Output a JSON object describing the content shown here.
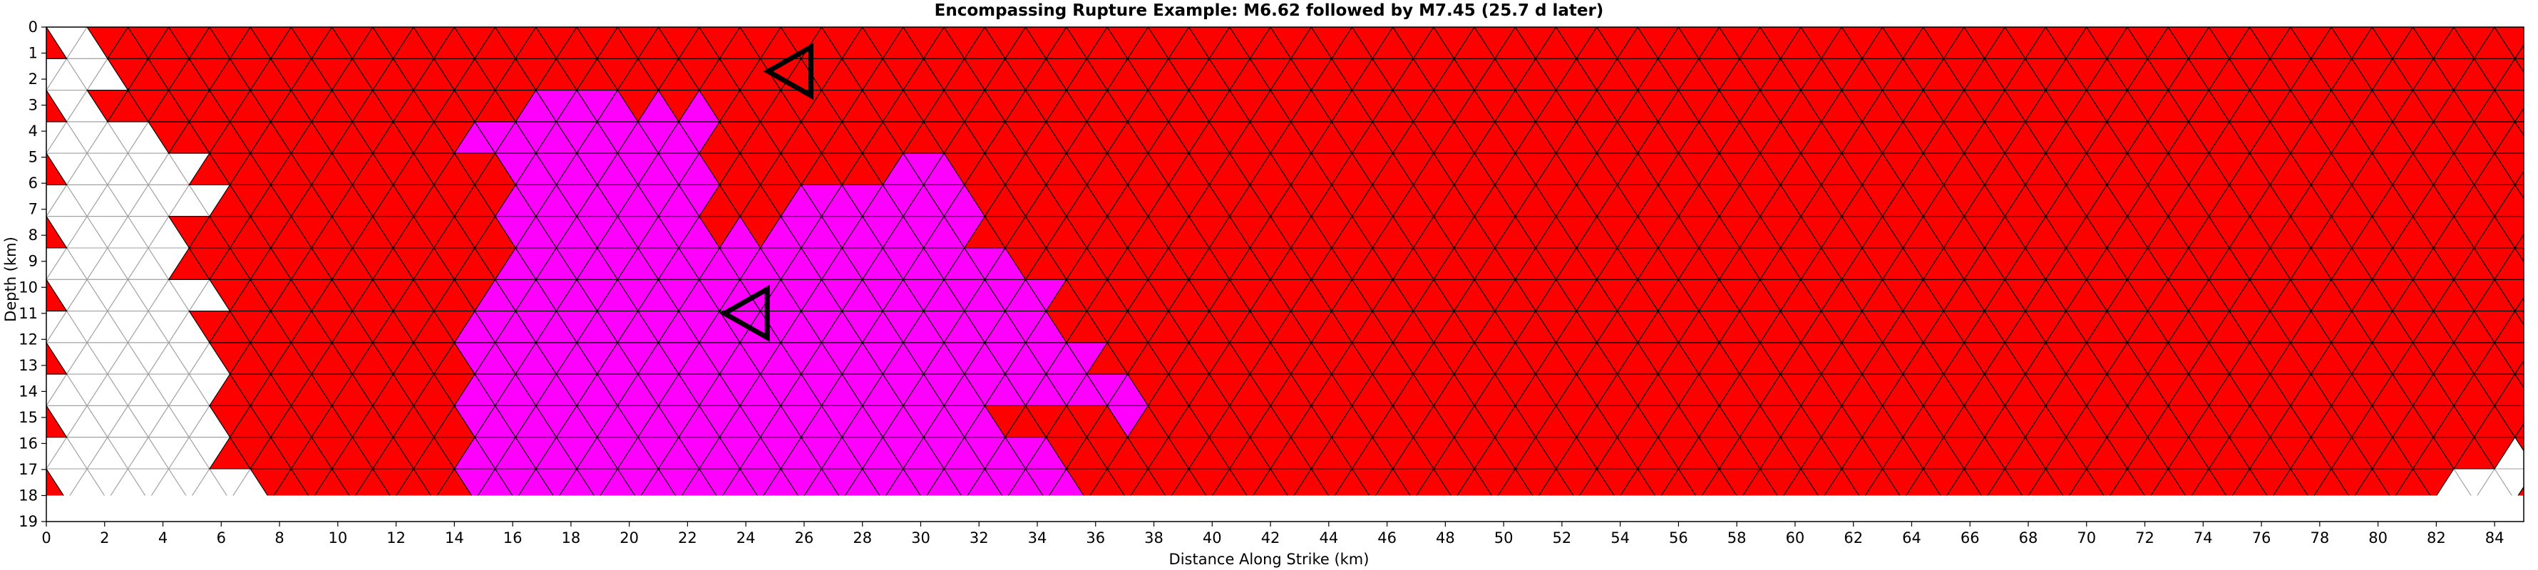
{
  "chart_data": {
    "type": "heatmap",
    "title": "Encompassing Rupture Example: M6.62 followed by M7.45 (25.7 d later)",
    "xlabel": "Distance Along Strike (km)",
    "ylabel": "Depth (km)",
    "xlim": [
      0,
      85
    ],
    "ylim": [
      19,
      0
    ],
    "y_inverted": true,
    "xticks": [
      "0",
      "2",
      "4",
      "6",
      "8",
      "10",
      "12",
      "14",
      "16",
      "18",
      "20",
      "22",
      "24",
      "26",
      "28",
      "30",
      "32",
      "34",
      "36",
      "38",
      "40",
      "42",
      "44",
      "46",
      "48",
      "50",
      "52",
      "54",
      "56",
      "58",
      "60",
      "62",
      "64",
      "66",
      "68",
      "70",
      "72",
      "74",
      "76",
      "78",
      "80",
      "82",
      "84"
    ],
    "yticks": [
      "0",
      "1",
      "2",
      "3",
      "4",
      "5",
      "6",
      "7",
      "8",
      "9",
      "10",
      "11",
      "12",
      "13",
      "14",
      "15",
      "16",
      "17",
      "18",
      "19"
    ],
    "mesh": {
      "fault_depth_km": [
        0,
        18
      ],
      "fault_length_km": [
        0,
        85
      ],
      "triangle_edge_km": 1.4
    },
    "colors": {
      "first_rupture_m6_62": "#ff00ff",
      "second_rupture_m7_45": "#ff0000",
      "unruptured": "#ffffff",
      "mesh_line_ruptured": "#000000",
      "mesh_line_unruptured": "#a0a0a0"
    },
    "regions": {
      "first_rupture_outline_km": [
        [
          15.9,
          3.3
        ],
        [
          17.6,
          2.0
        ],
        [
          17.6,
          3.3
        ],
        [
          19.3,
          2.5
        ],
        [
          21.0,
          3.2
        ],
        [
          22.5,
          2.5
        ],
        [
          22.5,
          7.0
        ],
        [
          22.5,
          8.5
        ],
        [
          25.0,
          7.5
        ],
        [
          26.8,
          6.0
        ],
        [
          26.8,
          5.0
        ],
        [
          28.0,
          6.0
        ],
        [
          29.5,
          5.0
        ],
        [
          31.9,
          6.0
        ],
        [
          31.9,
          8.5
        ],
        [
          35.2,
          10.0
        ],
        [
          33.5,
          11.0
        ],
        [
          35.2,
          12.0
        ],
        [
          36.7,
          11.5
        ],
        [
          35.5,
          13.5
        ],
        [
          37.5,
          14.0
        ],
        [
          37.5,
          15.5
        ],
        [
          35.5,
          14.5
        ],
        [
          32.0,
          15.0
        ],
        [
          35.2,
          16.5
        ],
        [
          35.2,
          18.0
        ],
        [
          14.2,
          18.0
        ],
        [
          14.2,
          11.0
        ],
        [
          15.9,
          10.0
        ],
        [
          15.9,
          4.5
        ],
        [
          14.2,
          5.0
        ],
        [
          14.2,
          3.5
        ]
      ],
      "unruptured_outline_km": [
        [
          0,
          0
        ],
        [
          1.4,
          0
        ],
        [
          1.4,
          1.0
        ],
        [
          2.8,
          1.8
        ],
        [
          1.4,
          2.5
        ],
        [
          2.8,
          3.5
        ],
        [
          4.3,
          4.5
        ],
        [
          5.7,
          5.0
        ],
        [
          4.3,
          5.5
        ],
        [
          5.7,
          6.5
        ],
        [
          4.3,
          7.5
        ],
        [
          5.7,
          8.5
        ],
        [
          4.3,
          9.5
        ],
        [
          5.7,
          10.5
        ],
        [
          4.3,
          11.5
        ],
        [
          5.7,
          12.0
        ],
        [
          5.7,
          15.0
        ],
        [
          5.7,
          16.5
        ],
        [
          7.1,
          17.5
        ],
        [
          7.1,
          18.0
        ],
        [
          0,
          18.0
        ]
      ],
      "unruptured_corner_right_km": [
        [
          85,
          16.5
        ],
        [
          85,
          18.0
        ],
        [
          82.6,
          18.0
        ],
        [
          82.6,
          17.0
        ]
      ]
    },
    "annotations": [
      {
        "marker": "triangle-left",
        "label": "hypocenter_first",
        "x": 24.0,
        "y": 11.0
      },
      {
        "marker": "triangle-left",
        "label": "hypocenter_second",
        "x": 25.5,
        "y": 1.7
      }
    ]
  }
}
